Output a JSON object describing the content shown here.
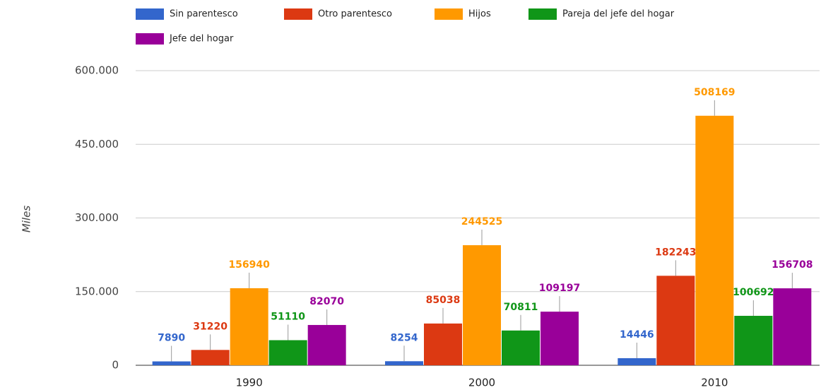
{
  "chart_data": {
    "type": "bar",
    "y_label": "Miles",
    "categories": [
      "1990",
      "2000",
      "2010"
    ],
    "series": [
      {
        "name": "Sin parentesco",
        "color": "#3366cc",
        "values": [
          7890,
          8254,
          14446
        ]
      },
      {
        "name": "Otro parentesco",
        "color": "#dc3912",
        "values": [
          31220,
          85038,
          182243
        ]
      },
      {
        "name": "Hijos",
        "color": "#ff9900",
        "values": [
          156940,
          244525,
          508169
        ]
      },
      {
        "name": "Pareja del jefe del hogar",
        "color": "#109618",
        "values": [
          51110,
          70811,
          100692
        ]
      },
      {
        "name": "Jefe del hogar",
        "color": "#990099",
        "values": [
          82070,
          109197,
          156708
        ]
      }
    ],
    "ylim": [
      0,
      600000
    ],
    "yticks": [
      0,
      {
        "value": 150000,
        "label": "150.000"
      },
      {
        "value": 300000,
        "label": "300.000"
      },
      {
        "value": 450000,
        "label": "450.000"
      },
      {
        "value": 600000,
        "label": "600.000"
      }
    ],
    "grid": true,
    "legend": "top",
    "data_labels": true
  }
}
